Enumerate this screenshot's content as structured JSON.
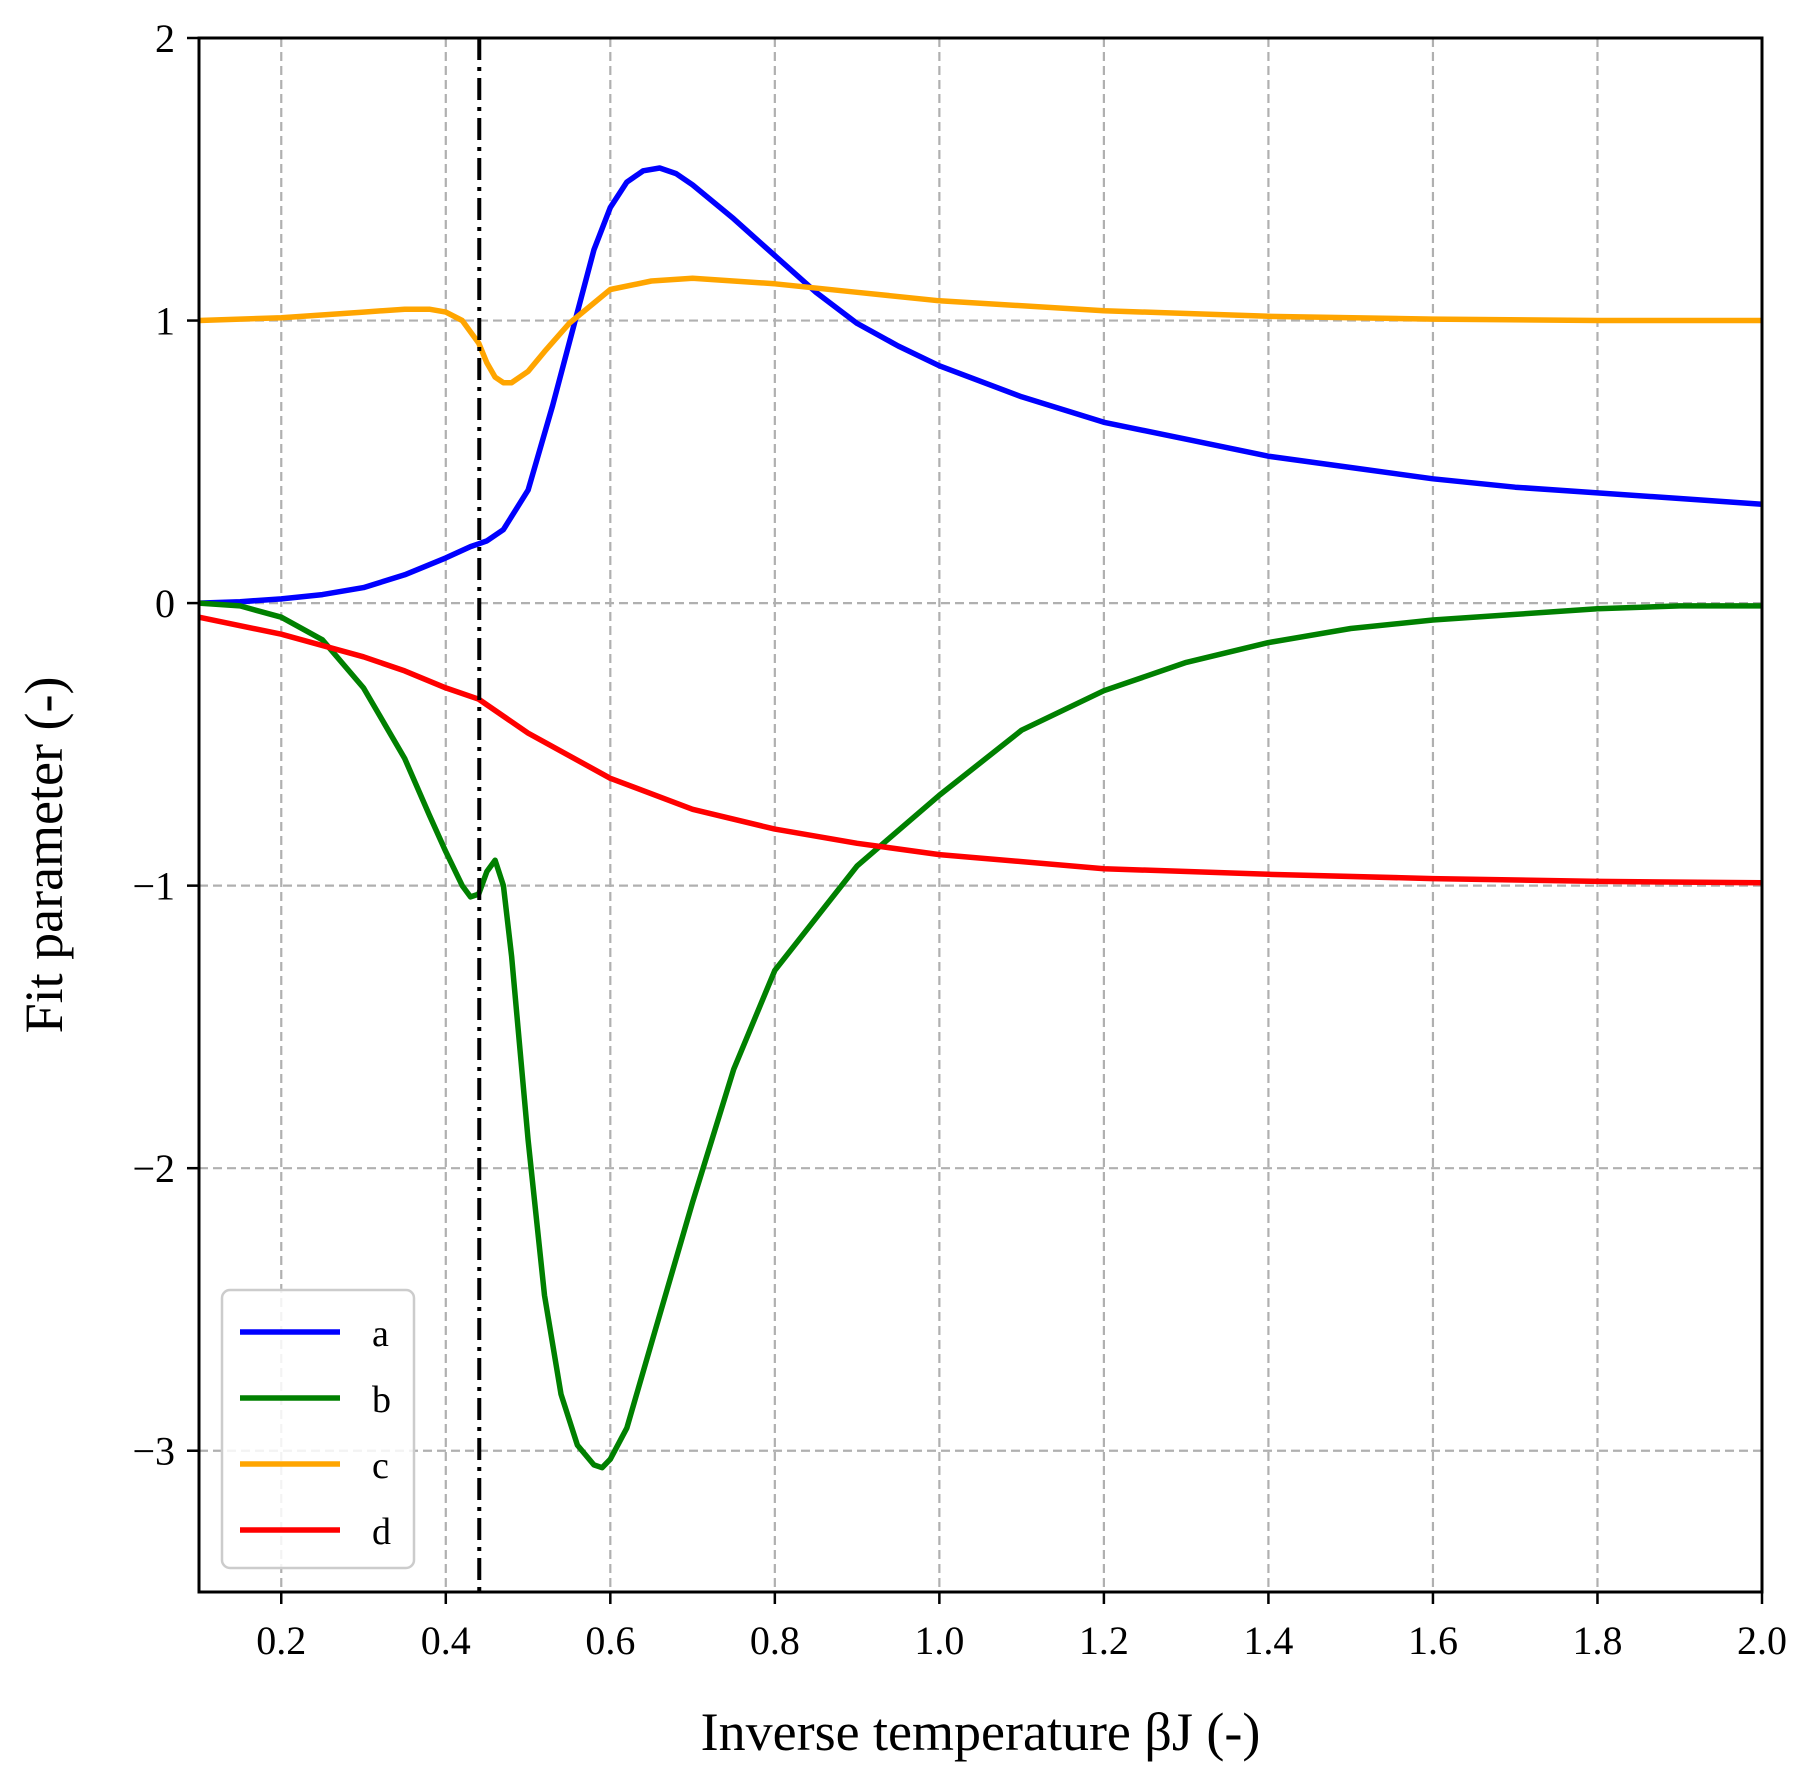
{
  "chart_data": {
    "type": "line",
    "title": "",
    "xlabel": "Inverse temperature βJ (-)",
    "ylabel": "Fit parameter (-)",
    "xlim": [
      0.1,
      2.0
    ],
    "ylim": [
      -3.5,
      2.0
    ],
    "xticks": [
      0.2,
      0.4,
      0.6,
      0.8,
      1.0,
      1.2,
      1.4,
      1.6,
      1.8,
      2.0
    ],
    "xtick_labels": [
      "0.2",
      "0.4",
      "0.6",
      "0.8",
      "1.0",
      "1.2",
      "1.4",
      "1.6",
      "1.8",
      "2.0"
    ],
    "yticks": [
      -3,
      -2,
      -1,
      0,
      1,
      2
    ],
    "ytick_labels": [
      "−3",
      "−2",
      "−1",
      "0",
      "1",
      "2"
    ],
    "grid": true,
    "legend_position": "bottom-left",
    "vertical_line": {
      "x": 0.4407,
      "style": "dash-dot",
      "color": "#000000"
    },
    "series": [
      {
        "name": "a",
        "color": "#0000ff",
        "x": [
          0.1,
          0.15,
          0.2,
          0.25,
          0.3,
          0.35,
          0.4,
          0.43,
          0.44,
          0.45,
          0.47,
          0.5,
          0.53,
          0.56,
          0.58,
          0.6,
          0.62,
          0.64,
          0.66,
          0.68,
          0.7,
          0.75,
          0.8,
          0.85,
          0.9,
          0.95,
          1.0,
          1.1,
          1.2,
          1.3,
          1.4,
          1.5,
          1.6,
          1.7,
          1.8,
          1.9,
          2.0
        ],
        "y": [
          0.0,
          0.005,
          0.015,
          0.03,
          0.055,
          0.1,
          0.16,
          0.2,
          0.21,
          0.22,
          0.26,
          0.4,
          0.7,
          1.03,
          1.25,
          1.4,
          1.49,
          1.53,
          1.54,
          1.52,
          1.48,
          1.36,
          1.23,
          1.1,
          0.99,
          0.91,
          0.84,
          0.73,
          0.64,
          0.58,
          0.52,
          0.48,
          0.44,
          0.41,
          0.39,
          0.37,
          0.35
        ]
      },
      {
        "name": "b",
        "color": "#008000",
        "x": [
          0.1,
          0.15,
          0.2,
          0.25,
          0.3,
          0.35,
          0.38,
          0.4,
          0.42,
          0.43,
          0.44,
          0.45,
          0.46,
          0.47,
          0.48,
          0.5,
          0.52,
          0.54,
          0.56,
          0.58,
          0.59,
          0.6,
          0.62,
          0.65,
          0.7,
          0.75,
          0.8,
          0.9,
          1.0,
          1.1,
          1.2,
          1.3,
          1.4,
          1.5,
          1.6,
          1.7,
          1.8,
          1.9,
          2.0
        ],
        "y": [
          0.0,
          -0.01,
          -0.05,
          -0.13,
          -0.3,
          -0.55,
          -0.75,
          -0.88,
          -1.0,
          -1.04,
          -1.03,
          -0.95,
          -0.91,
          -1.0,
          -1.25,
          -1.9,
          -2.45,
          -2.8,
          -2.98,
          -3.05,
          -3.06,
          -3.03,
          -2.92,
          -2.62,
          -2.12,
          -1.65,
          -1.3,
          -0.93,
          -0.68,
          -0.45,
          -0.31,
          -0.21,
          -0.14,
          -0.09,
          -0.06,
          -0.04,
          -0.02,
          -0.01,
          -0.01
        ]
      },
      {
        "name": "c",
        "color": "#ffa500",
        "x": [
          0.1,
          0.2,
          0.3,
          0.35,
          0.38,
          0.4,
          0.42,
          0.44,
          0.45,
          0.46,
          0.47,
          0.48,
          0.5,
          0.52,
          0.55,
          0.6,
          0.65,
          0.7,
          0.8,
          0.9,
          1.0,
          1.2,
          1.4,
          1.6,
          1.8,
          2.0
        ],
        "y": [
          1.0,
          1.01,
          1.03,
          1.04,
          1.04,
          1.03,
          1.0,
          0.92,
          0.85,
          0.8,
          0.78,
          0.78,
          0.82,
          0.89,
          0.99,
          1.11,
          1.14,
          1.15,
          1.13,
          1.1,
          1.07,
          1.035,
          1.015,
          1.005,
          1.0,
          1.0
        ]
      },
      {
        "name": "d",
        "color": "#ff0000",
        "x": [
          0.1,
          0.2,
          0.3,
          0.35,
          0.4,
          0.44,
          0.5,
          0.6,
          0.7,
          0.8,
          0.9,
          1.0,
          1.2,
          1.4,
          1.6,
          1.8,
          2.0
        ],
        "y": [
          -0.05,
          -0.11,
          -0.19,
          -0.24,
          -0.3,
          -0.34,
          -0.46,
          -0.62,
          -0.73,
          -0.8,
          -0.85,
          -0.89,
          -0.94,
          -0.96,
          -0.975,
          -0.985,
          -0.99
        ]
      }
    ]
  }
}
